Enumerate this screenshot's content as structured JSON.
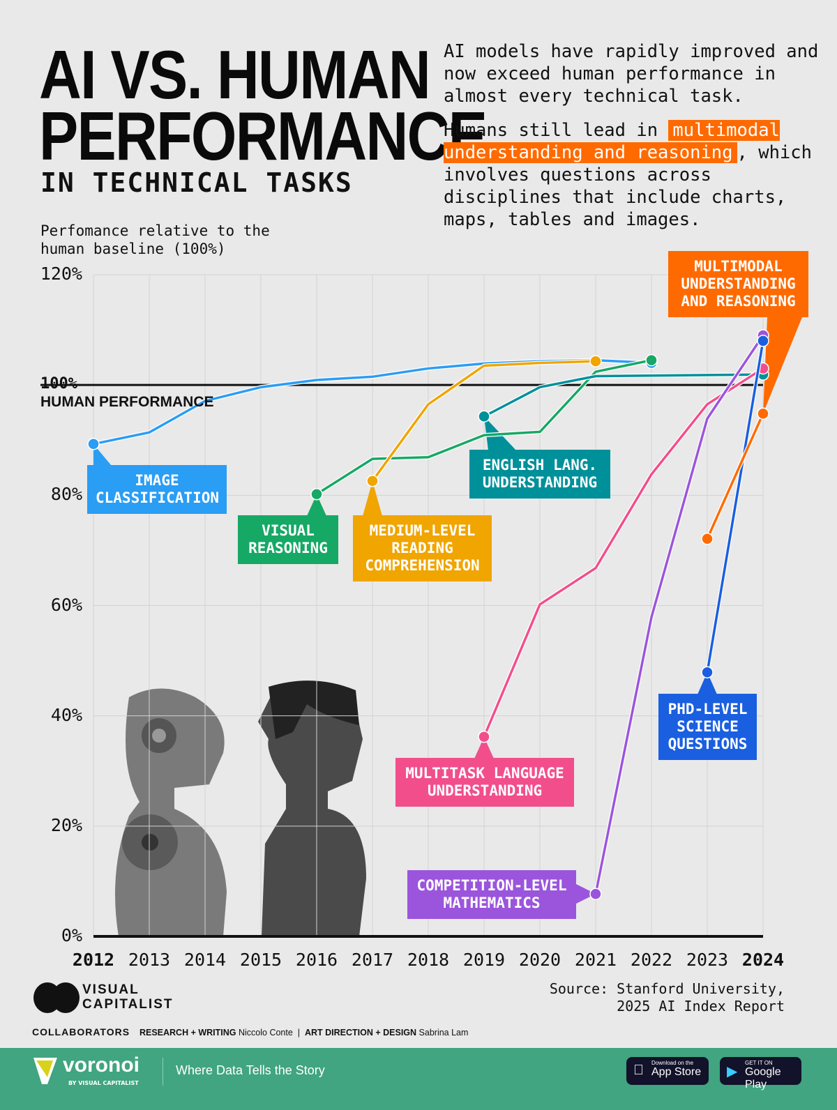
{
  "header": {
    "title_line1": "AI VS. HUMAN",
    "title_line2": "PERFORMANCE",
    "subtitle": "IN TECHNICAL TASKS",
    "description1": "AI models have rapidly improved and now exceed human performance in almost every technical task.",
    "description2_pre": "Humans still lead in ",
    "description2_highlight": "multimodal understanding and reasoning",
    "description2_post": ", which involves questions across disciplines that include charts, maps, tables and images."
  },
  "chart_data": {
    "type": "line",
    "ylabel": "Perfomance relative to the human baseline (100%)",
    "ylim": [
      0,
      120
    ],
    "yticks": [
      "0%",
      "20%",
      "40%",
      "60%",
      "80%",
      "100%",
      "120%"
    ],
    "x": [
      "2012",
      "2013",
      "2014",
      "2015",
      "2016",
      "2017",
      "2018",
      "2019",
      "2020",
      "2021",
      "2022",
      "2023",
      "2024"
    ],
    "grid": true,
    "baseline": {
      "value": 100,
      "label": "100%",
      "text": "HUMAN PERFORMANCE"
    },
    "series": [
      {
        "name": "IMAGE CLASSIFICATION",
        "color": "#2a9df4",
        "points": [
          [
            2012,
            89.3
          ],
          [
            2013,
            91.4
          ],
          [
            2014,
            97.1
          ],
          [
            2015,
            99.6
          ],
          [
            2016,
            100.9
          ],
          [
            2017,
            101.5
          ],
          [
            2018,
            103
          ],
          [
            2019,
            103.9
          ],
          [
            2020,
            104.3
          ],
          [
            2021,
            104.5
          ],
          [
            2022,
            104
          ]
        ]
      },
      {
        "name": "VISUAL REASONING",
        "color": "#16a865",
        "points": [
          [
            2016,
            80.2
          ],
          [
            2017,
            86.6
          ],
          [
            2018,
            86.9
          ],
          [
            2019,
            90.9
          ],
          [
            2020,
            91.5
          ],
          [
            2021,
            102.4
          ],
          [
            2022,
            104.5
          ]
        ]
      },
      {
        "name": "MEDIUM-LEVEL READING COMPREHENSION",
        "color": "#f0a500",
        "points": [
          [
            2017,
            82.6
          ],
          [
            2018,
            96.5
          ],
          [
            2019,
            103.5
          ],
          [
            2020,
            104
          ],
          [
            2021,
            104.3
          ]
        ]
      },
      {
        "name": "ENGLISH LANG. UNDERSTANDING",
        "color": "#00909a",
        "points": [
          [
            2019,
            94.3
          ],
          [
            2020,
            99.6
          ],
          [
            2021,
            101.6
          ],
          [
            2024,
            101.9
          ]
        ]
      },
      {
        "name": "MULTITASK LANGUAGE UNDERSTANDING",
        "color": "#f24e8c",
        "points": [
          [
            2019,
            36.2
          ],
          [
            2020,
            60.2
          ],
          [
            2021,
            66.8
          ],
          [
            2022,
            83.8
          ],
          [
            2023,
            96.5
          ],
          [
            2024,
            103
          ]
        ]
      },
      {
        "name": "COMPETITION-LEVEL MATHEMATICS",
        "color": "#9b55dc",
        "points": [
          [
            2021,
            7.7
          ],
          [
            2022,
            57.9
          ],
          [
            2023,
            93.9
          ],
          [
            2024,
            109
          ]
        ]
      },
      {
        "name": "PHD-LEVEL SCIENCE QUESTIONS",
        "color": "#1a5fe0",
        "points": [
          [
            2023,
            47.9
          ],
          [
            2024,
            108
          ]
        ]
      },
      {
        "name": "MULTIMODAL UNDERSTANDING AND REASONING",
        "color": "#ff6a00",
        "points": [
          [
            2023,
            72.1
          ],
          [
            2024,
            94.8
          ]
        ]
      }
    ]
  },
  "source": "Source: Stanford University,\n2025 AI Index Report",
  "branding": {
    "logo_text": "VISUAL\nCAPITALIST",
    "collaborators": "COLLABORATORS",
    "research_label": "RESEARCH + WRITING",
    "research_name": "Niccolo Conte",
    "design_label": "ART DIRECTION + DESIGN",
    "design_name": "Sabrina Lam"
  },
  "footer": {
    "brand": "voronoi",
    "brand_sub": "BY VISUAL CAPITALIST",
    "tagline": "Where Data Tells the Story",
    "appstore_small": "Download on the",
    "appstore": "App Store",
    "play_small": "GET IT ON",
    "play": "Google Play",
    "color": "#40a580"
  }
}
